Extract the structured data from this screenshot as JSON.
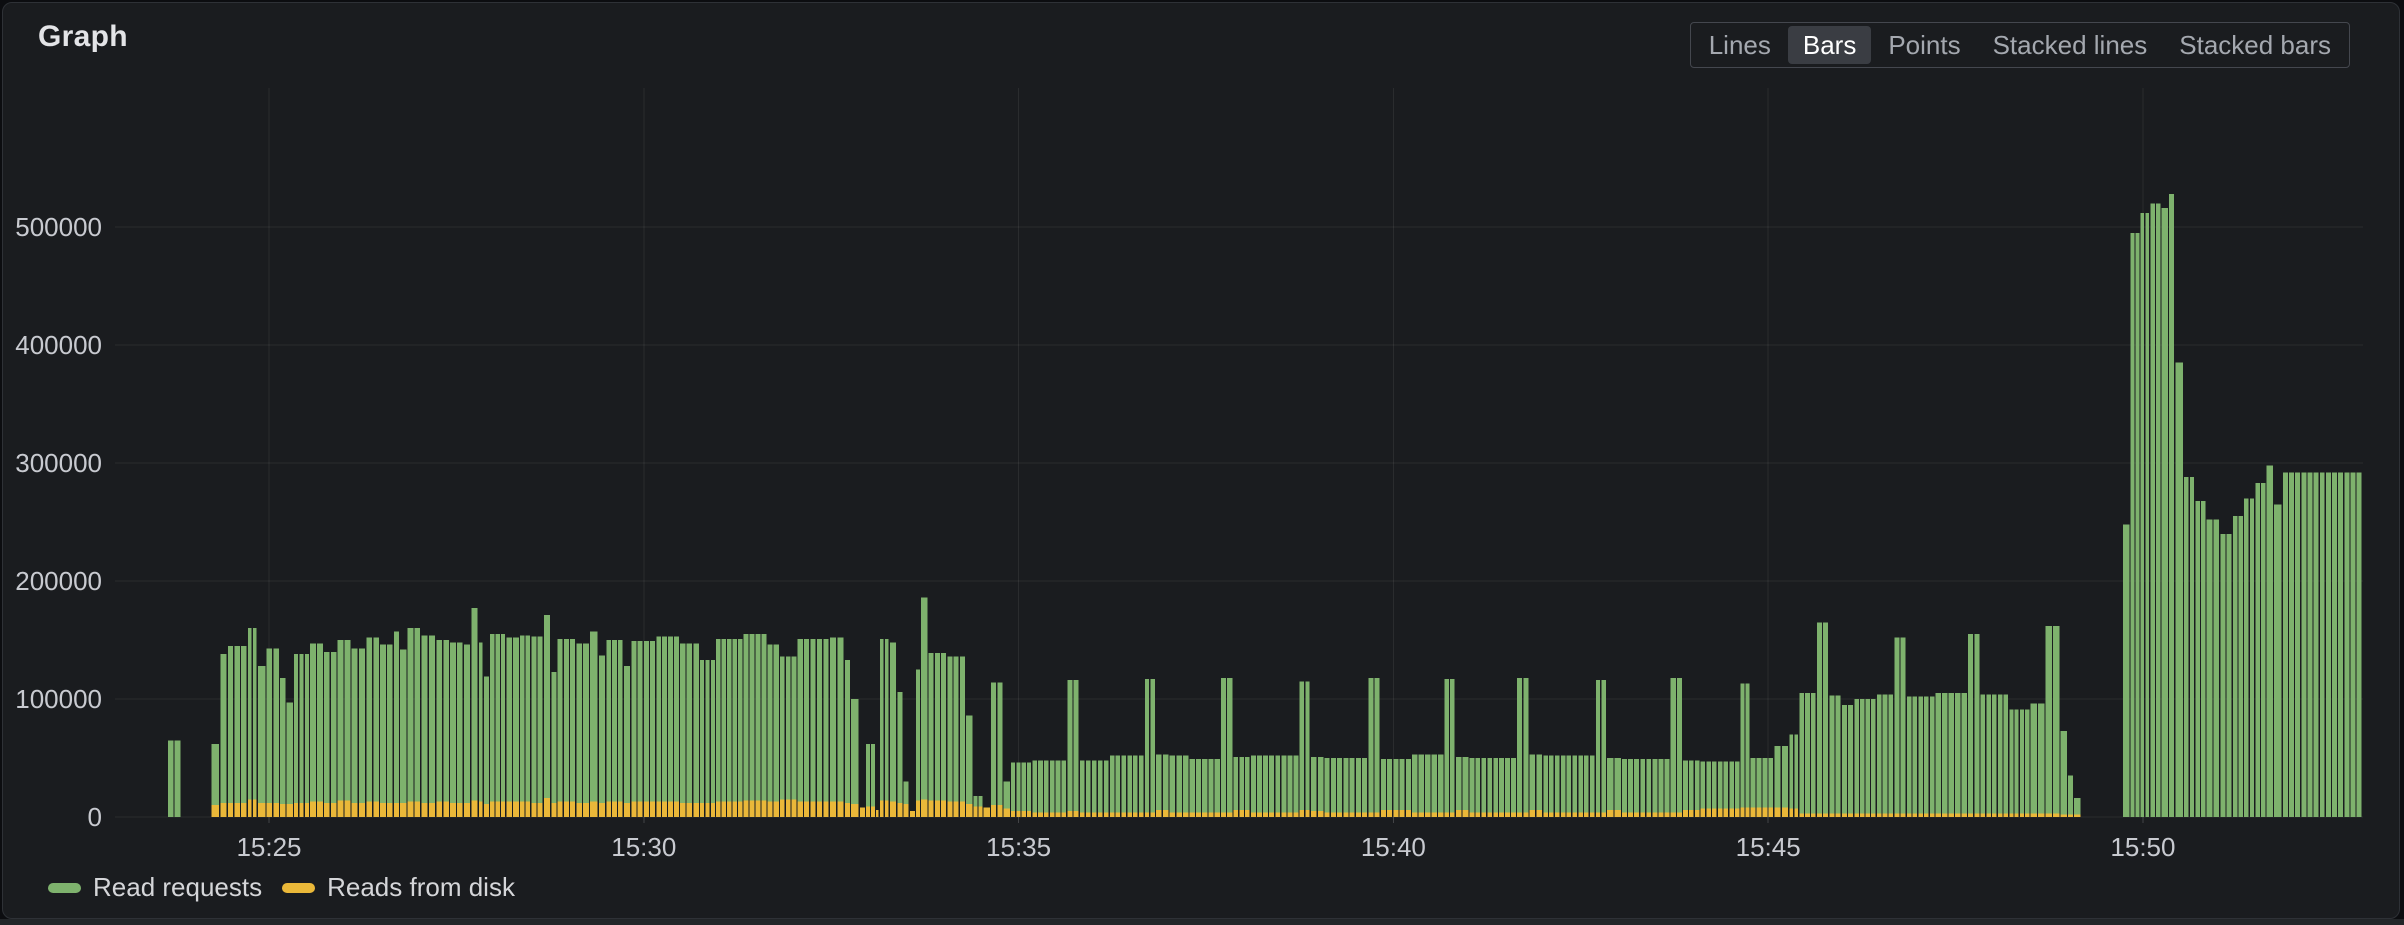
{
  "panel": {
    "title": "Graph"
  },
  "toolbar": {
    "options": [
      "Lines",
      "Bars",
      "Points",
      "Stacked lines",
      "Stacked bars"
    ],
    "selected": "Bars"
  },
  "legend": [
    {
      "label": "Read requests",
      "color": "#7EB26D"
    },
    {
      "label": "Reads from disk",
      "color": "#EAB839"
    }
  ],
  "colors": {
    "green_series": "#7EB26D",
    "yellow_series": "#EAB839",
    "panel_background": "#1a1c1f",
    "selected_button_background": "#3a3d43"
  },
  "chart_data": {
    "type": "bar",
    "title": "Graph",
    "xlabel": "",
    "ylabel": "",
    "grid": true,
    "legend_position": "bottom-left",
    "ylim": [
      0,
      625000
    ],
    "y_ticks": [
      {
        "value": 0,
        "label": "0"
      },
      {
        "value": 100000,
        "label": "100000"
      },
      {
        "value": 200000,
        "label": "200000"
      },
      {
        "value": 300000,
        "label": "300000"
      },
      {
        "value": 400000,
        "label": "400000"
      },
      {
        "value": 500000,
        "label": "500000"
      }
    ],
    "x_ticks": [
      {
        "t": 0,
        "label": "15:25"
      },
      {
        "t": 300,
        "label": "15:30"
      },
      {
        "t": 600,
        "label": "15:35"
      },
      {
        "t": 900,
        "label": "15:40"
      },
      {
        "t": 1200,
        "label": "15:45"
      },
      {
        "t": 1500,
        "label": "15:50"
      }
    ],
    "x_range_seconds": [
      -123,
      1676
    ],
    "series": [
      {
        "name": "Read requests",
        "color": "#7EB26D"
      },
      {
        "name": "Reads from disk",
        "color": "#EAB839"
      }
    ],
    "segments_format": [
      "t_start_sec_from_15:25",
      "t_end_sec",
      "read_requests",
      "reads_from_disk"
    ],
    "segments": [
      [
        -81,
        -70,
        65000,
        0
      ],
      [
        -46,
        -39,
        62000,
        10000
      ],
      [
        -39,
        -33,
        138000,
        12000
      ],
      [
        -33,
        -17,
        145000,
        12000
      ],
      [
        -17,
        -9,
        160000,
        15000
      ],
      [
        -9,
        -2,
        128000,
        12000
      ],
      [
        -2,
        9,
        143000,
        12000
      ],
      [
        9,
        14,
        118000,
        11000
      ],
      [
        14,
        20,
        97000,
        11000
      ],
      [
        20,
        33,
        138000,
        12000
      ],
      [
        33,
        44,
        147000,
        13000
      ],
      [
        44,
        55,
        140000,
        12000
      ],
      [
        55,
        66,
        150000,
        14000
      ],
      [
        66,
        78,
        143000,
        12000
      ],
      [
        78,
        89,
        152000,
        13000
      ],
      [
        89,
        100,
        146000,
        12000
      ],
      [
        100,
        105,
        157000,
        12000
      ],
      [
        105,
        111,
        142000,
        12000
      ],
      [
        111,
        122,
        160000,
        13000
      ],
      [
        122,
        134,
        154000,
        12000
      ],
      [
        134,
        145,
        150000,
        13000
      ],
      [
        145,
        156,
        148000,
        12000
      ],
      [
        156,
        162,
        146000,
        12000
      ],
      [
        162,
        168,
        177000,
        14000
      ],
      [
        168,
        172,
        148000,
        13000
      ],
      [
        172,
        177,
        119000,
        11000
      ],
      [
        177,
        190,
        155000,
        13000
      ],
      [
        190,
        201,
        152000,
        13000
      ],
      [
        201,
        210,
        154000,
        13000
      ],
      [
        210,
        220,
        153000,
        12000
      ],
      [
        220,
        226,
        171000,
        16000
      ],
      [
        226,
        231,
        123000,
        12000
      ],
      [
        231,
        246,
        151000,
        13000
      ],
      [
        246,
        257,
        147000,
        12000
      ],
      [
        257,
        264,
        157000,
        13000
      ],
      [
        264,
        270,
        137000,
        12000
      ],
      [
        270,
        284,
        150000,
        13000
      ],
      [
        284,
        290,
        128000,
        12000
      ],
      [
        290,
        310,
        149000,
        13000
      ],
      [
        310,
        329,
        153000,
        13000
      ],
      [
        329,
        345,
        147000,
        12000
      ],
      [
        345,
        358,
        133000,
        12000
      ],
      [
        358,
        380,
        151000,
        13000
      ],
      [
        380,
        399,
        155000,
        14000
      ],
      [
        399,
        409,
        146000,
        13000
      ],
      [
        409,
        423,
        136000,
        15000
      ],
      [
        423,
        449,
        151000,
        13000
      ],
      [
        449,
        461,
        152000,
        13000
      ],
      [
        461,
        466,
        133000,
        12000
      ],
      [
        466,
        473,
        100000,
        11000
      ],
      [
        473,
        478,
        4000,
        8000
      ],
      [
        478,
        486,
        62000,
        9000
      ],
      [
        486,
        489,
        3000,
        6000
      ],
      [
        489,
        497,
        151000,
        14000
      ],
      [
        497,
        503,
        148000,
        13000
      ],
      [
        503,
        508,
        106000,
        12000
      ],
      [
        508,
        513,
        30000,
        11000
      ],
      [
        513,
        518,
        2000,
        5000
      ],
      [
        518,
        522,
        125000,
        14000
      ],
      [
        522,
        528,
        186000,
        15000
      ],
      [
        528,
        543,
        139000,
        14000
      ],
      [
        543,
        558,
        136000,
        13000
      ],
      [
        558,
        564,
        86000,
        11000
      ],
      [
        564,
        572,
        18000,
        9000
      ],
      [
        572,
        578,
        5000,
        8000
      ],
      [
        578,
        588,
        114000,
        10000
      ],
      [
        588,
        594,
        30000,
        7000
      ],
      [
        594,
        611,
        46000,
        5000
      ],
      [
        611,
        639,
        48000,
        4000
      ],
      [
        639,
        649,
        116000,
        5000
      ],
      [
        649,
        673,
        48000,
        4000
      ],
      [
        673,
        701,
        52000,
        4000
      ],
      [
        701,
        710,
        117000,
        4000
      ],
      [
        710,
        721,
        53000,
        6000
      ],
      [
        721,
        737,
        52000,
        4000
      ],
      [
        737,
        762,
        49000,
        4000
      ],
      [
        762,
        772,
        118000,
        4000
      ],
      [
        772,
        786,
        51000,
        6000
      ],
      [
        786,
        825,
        52000,
        4000
      ],
      [
        825,
        834,
        115000,
        6000
      ],
      [
        834,
        845,
        51000,
        5000
      ],
      [
        845,
        880,
        50000,
        4000
      ],
      [
        880,
        890,
        118000,
        4000
      ],
      [
        890,
        915,
        49000,
        6000
      ],
      [
        915,
        941,
        53000,
        4000
      ],
      [
        941,
        950,
        117000,
        4000
      ],
      [
        950,
        961,
        51000,
        6000
      ],
      [
        961,
        999,
        50000,
        4000
      ],
      [
        999,
        1009,
        118000,
        4000
      ],
      [
        1009,
        1020,
        53000,
        6000
      ],
      [
        1020,
        1062,
        52000,
        4000
      ],
      [
        1062,
        1071,
        116000,
        4000
      ],
      [
        1071,
        1083,
        50000,
        6000
      ],
      [
        1083,
        1122,
        49000,
        4000
      ],
      [
        1122,
        1132,
        118000,
        4000
      ],
      [
        1132,
        1146,
        48000,
        6000
      ],
      [
        1146,
        1178,
        47000,
        7000
      ],
      [
        1178,
        1186,
        113000,
        8000
      ],
      [
        1186,
        1205,
        50000,
        8000
      ],
      [
        1205,
        1217,
        60000,
        8000
      ],
      [
        1217,
        1225,
        70000,
        7000
      ],
      [
        1225,
        1239,
        105000,
        3000
      ],
      [
        1239,
        1249,
        165000,
        3000
      ],
      [
        1249,
        1259,
        103000,
        3000
      ],
      [
        1259,
        1269,
        95000,
        3000
      ],
      [
        1269,
        1287,
        100000,
        3000
      ],
      [
        1287,
        1301,
        104000,
        3000
      ],
      [
        1301,
        1311,
        152000,
        3000
      ],
      [
        1311,
        1334,
        102000,
        3000
      ],
      [
        1334,
        1360,
        105000,
        3000
      ],
      [
        1360,
        1370,
        155000,
        3000
      ],
      [
        1370,
        1393,
        104000,
        3000
      ],
      [
        1393,
        1410,
        91000,
        3000
      ],
      [
        1410,
        1422,
        96000,
        3000
      ],
      [
        1422,
        1434,
        162000,
        3000
      ],
      [
        1434,
        1440,
        73000,
        2000
      ],
      [
        1440,
        1445,
        35000,
        2000
      ],
      [
        1445,
        1451,
        16000,
        2000
      ],
      [
        1451,
        1484,
        0,
        0
      ],
      [
        1484,
        1490,
        248000,
        0
      ],
      [
        1490,
        1498,
        495000,
        0
      ],
      [
        1498,
        1506,
        512000,
        0
      ],
      [
        1506,
        1515,
        520000,
        0
      ],
      [
        1515,
        1521,
        516000,
        0
      ],
      [
        1521,
        1526,
        528000,
        0
      ],
      [
        1526,
        1533,
        385000,
        0
      ],
      [
        1533,
        1542,
        288000,
        0
      ],
      [
        1542,
        1551,
        268000,
        0
      ],
      [
        1551,
        1562,
        252000,
        0
      ],
      [
        1562,
        1572,
        240000,
        0
      ],
      [
        1572,
        1581,
        255000,
        0
      ],
      [
        1581,
        1590,
        270000,
        0
      ],
      [
        1590,
        1599,
        283000,
        0
      ],
      [
        1599,
        1605,
        298000,
        0
      ],
      [
        1605,
        1612,
        265000,
        0
      ],
      [
        1612,
        1676,
        292000,
        0
      ]
    ]
  }
}
